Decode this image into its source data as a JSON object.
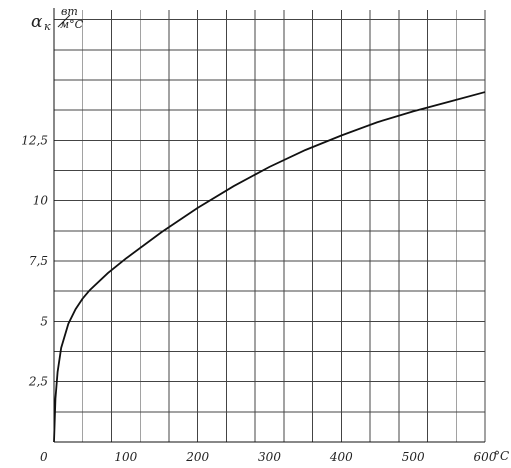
{
  "chart_data": {
    "type": "line",
    "ylabel": "α",
    "ylabel_subscript": "к",
    "yunit_numerator": "вт",
    "yunit_denominator": "м°С",
    "xunit": "°C",
    "x_ticks": [
      {
        "value": 0,
        "label": "0"
      },
      {
        "value": 100,
        "label": "100"
      },
      {
        "value": 200,
        "label": "200"
      },
      {
        "value": 300,
        "label": "300"
      },
      {
        "value": 400,
        "label": "400"
      },
      {
        "value": 500,
        "label": "500"
      },
      {
        "value": 600,
        "label": "600"
      }
    ],
    "y_ticks": [
      {
        "value": 2.5,
        "label": "2,5"
      },
      {
        "value": 5,
        "label": "5"
      },
      {
        "value": 7.5,
        "label": "7,5"
      },
      {
        "value": 10,
        "label": "10"
      },
      {
        "value": 12.5,
        "label": "12,5"
      }
    ],
    "xlim": [
      0,
      600
    ],
    "ylim": [
      0,
      17.9
    ],
    "grid": true,
    "x_gridlines": [
      0,
      40,
      80,
      120,
      160,
      200,
      240,
      280,
      320,
      360,
      400,
      440,
      480,
      520,
      560,
      600
    ],
    "y_gridlines": [
      0,
      1.25,
      2.5,
      3.75,
      5,
      6.25,
      7.5,
      8.75,
      10,
      11.25,
      12.5,
      13.75,
      15,
      16.25,
      17.5
    ],
    "series": [
      {
        "x": [
          0,
          2,
          5,
          10,
          20,
          30,
          40,
          50,
          75,
          100,
          150,
          200,
          250,
          300,
          350,
          400,
          450,
          500,
          550,
          600
        ],
        "y": [
          0,
          1.8,
          2.9,
          3.9,
          4.9,
          5.5,
          5.95,
          6.3,
          7.0,
          7.6,
          8.7,
          9.7,
          10.6,
          11.4,
          12.1,
          12.7,
          13.25,
          13.7,
          14.1,
          14.5
        ]
      }
    ]
  }
}
